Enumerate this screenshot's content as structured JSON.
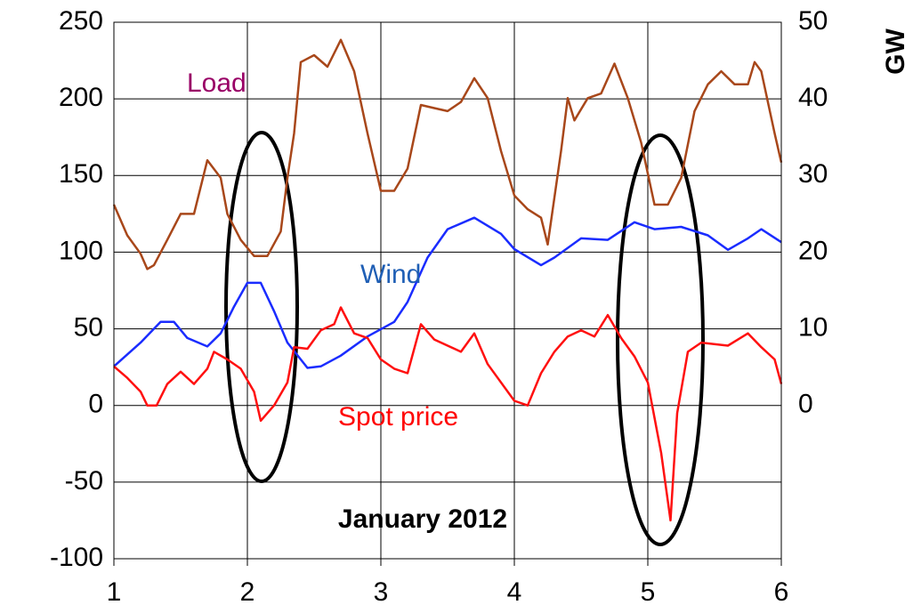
{
  "chart_data": {
    "type": "line",
    "annotations": [
      "January 2012"
    ],
    "y2label": "GW",
    "xlim": [
      1,
      6
    ],
    "xticks": [
      1,
      2,
      3,
      4,
      5,
      6
    ],
    "ylim": [
      -100,
      250
    ],
    "yticks": [
      -100,
      -50,
      0,
      50,
      100,
      150,
      200,
      250
    ],
    "y2lim": [
      -20,
      50
    ],
    "y2ticks": [
      0,
      10,
      20,
      30,
      40,
      50
    ],
    "grid": true,
    "series": [
      {
        "name": "Load",
        "color": "#a8471a",
        "label_color": "#990066",
        "axis": "y2",
        "x": [
          1.0,
          1.1,
          1.2,
          1.25,
          1.3,
          1.4,
          1.5,
          1.6,
          1.7,
          1.8,
          1.85,
          1.95,
          2.05,
          2.15,
          2.25,
          2.3,
          2.35,
          2.4,
          2.5,
          2.6,
          2.7,
          2.8,
          2.9,
          3.0,
          3.1,
          3.2,
          3.3,
          3.4,
          3.5,
          3.6,
          3.7,
          3.8,
          3.9,
          4.0,
          4.1,
          4.2,
          4.25,
          4.35,
          4.4,
          4.45,
          4.55,
          4.65,
          4.75,
          4.85,
          4.95,
          5.05,
          5.15,
          5.25,
          5.35,
          5.45,
          5.55,
          5.65,
          5.75,
          5.8,
          5.85,
          5.95,
          6.0
        ],
        "values": [
          26.2,
          22.2,
          19.8,
          17.8,
          18.3,
          21.6,
          25,
          25,
          32,
          29.7,
          25,
          21.6,
          19.5,
          19.5,
          22.7,
          29.7,
          35.5,
          44.8,
          45.7,
          44.2,
          47.7,
          43.6,
          35.5,
          28,
          28,
          30.9,
          39.2,
          38.8,
          38.4,
          39.6,
          42.7,
          40.1,
          33.2,
          27.4,
          25.6,
          24.5,
          21,
          33.2,
          40.1,
          37.2,
          40.1,
          40.7,
          44.6,
          40.1,
          34.3,
          26.2,
          26.2,
          29.7,
          38.4,
          41.9,
          43.6,
          41.9,
          41.9,
          44.8,
          43.6,
          35.5,
          31.7
        ]
      },
      {
        "name": "Wind",
        "color": "#1a2cff",
        "label_color": "#1f5fb5",
        "axis": "y2",
        "x": [
          1.0,
          1.2,
          1.35,
          1.45,
          1.55,
          1.7,
          1.8,
          1.9,
          2.0,
          2.1,
          2.2,
          2.3,
          2.45,
          2.55,
          2.7,
          2.9,
          3.1,
          3.2,
          3.35,
          3.5,
          3.7,
          3.9,
          4.0,
          4.2,
          4.3,
          4.5,
          4.7,
          4.9,
          5.05,
          5.25,
          5.45,
          5.6,
          5.75,
          5.85,
          6.0
        ],
        "values": [
          5.1,
          8.2,
          10.9,
          10.9,
          8.8,
          7.7,
          9.4,
          12.9,
          16,
          16,
          12.3,
          8.2,
          4.9,
          5.1,
          6.5,
          9,
          10.9,
          13.5,
          19.3,
          23,
          24.5,
          22.4,
          20.4,
          18.3,
          19.3,
          21.8,
          21.6,
          23.9,
          23,
          23.3,
          22.2,
          20.3,
          21.8,
          23,
          21.3
        ]
      },
      {
        "name": "Spot price",
        "color": "#ff1010",
        "label_color": "#ff0000",
        "x": [
          1.0,
          1.1,
          1.2,
          1.25,
          1.32,
          1.4,
          1.5,
          1.6,
          1.7,
          1.75,
          1.85,
          1.95,
          2.05,
          2.1,
          2.2,
          2.3,
          2.35,
          2.45,
          2.55,
          2.65,
          2.7,
          2.8,
          2.9,
          3.0,
          3.1,
          3.2,
          3.3,
          3.4,
          3.6,
          3.7,
          3.8,
          4.0,
          4.1,
          4.2,
          4.3,
          4.4,
          4.5,
          4.6,
          4.7,
          4.8,
          4.9,
          5.0,
          5.1,
          5.17,
          5.22,
          5.3,
          5.4,
          5.6,
          5.75,
          5.85,
          5.95,
          6.0
        ],
        "values": [
          25.5,
          18,
          9,
          0,
          0,
          14,
          22,
          14,
          24,
          35,
          30,
          24,
          9,
          -10,
          0,
          15,
          38,
          37,
          49,
          53,
          64,
          47,
          44,
          30,
          24,
          21,
          53,
          43,
          35,
          47,
          27,
          3,
          0,
          21,
          35,
          45,
          49,
          45,
          59,
          44,
          32,
          15,
          -31,
          -75,
          -5,
          35,
          41,
          39,
          47,
          38,
          30,
          14
        ]
      }
    ]
  }
}
